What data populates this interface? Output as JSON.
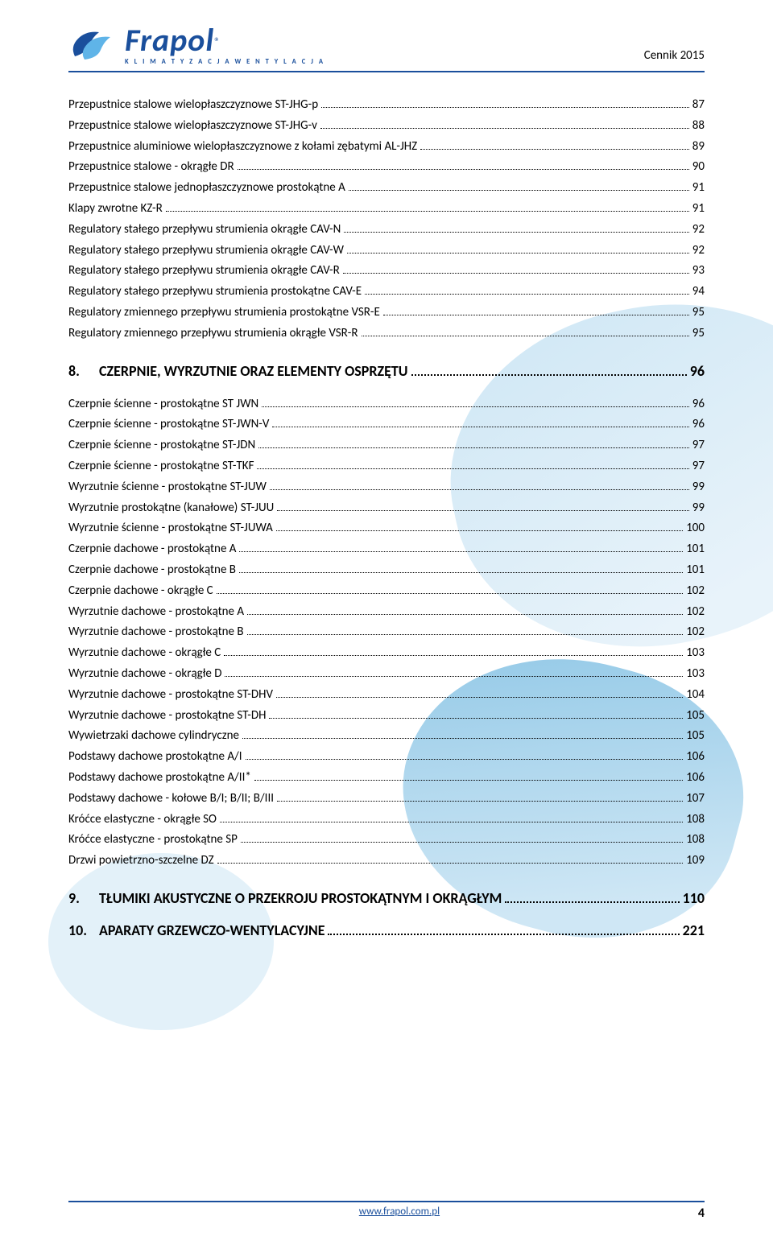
{
  "header": {
    "logo_text": "Frapol",
    "logo_reg": "®",
    "logo_sub": "K L I M A T Y Z A C J A   W E N T Y L A C J A",
    "right_text": "Cennik 2015"
  },
  "colors": {
    "brand_blue": "#1a4f9c",
    "bg_light": "#d9ecf7",
    "text": "#000000"
  },
  "toc_group_1": [
    {
      "label": "Przepustnice stalowe wielopłaszczyznowe ST-JHG-p",
      "page": "87"
    },
    {
      "label": "Przepustnice stalowe wielopłaszczyznowe ST-JHG-v",
      "page": "88"
    },
    {
      "label": "Przepustnice aluminiowe wielopłaszczyznowe z kołami zębatymi AL-JHZ",
      "page": "89"
    },
    {
      "label": "Przepustnice stalowe - okrągłe DR",
      "page": "90"
    },
    {
      "label": "Przepustnice stalowe jednopłaszczyznowe prostokątne A",
      "page": "91"
    },
    {
      "label": "Klapy zwrotne KZ-R",
      "page": "91"
    },
    {
      "label": "Regulatory stałego przepływu strumienia okrągłe CAV-N",
      "page": "92"
    },
    {
      "label": "Regulatory stałego przepływu strumienia okrągłe CAV-W",
      "page": "92"
    },
    {
      "label": "Regulatory stałego przepływu strumienia okrągłe CAV-R",
      "page": "93"
    },
    {
      "label": "Regulatory stałego przepływu strumienia prostokątne CAV-E",
      "page": "94"
    },
    {
      "label": "Regulatory zmiennego przepływu strumienia prostokątne VSR-E",
      "page": "95"
    },
    {
      "label": "Regulatory zmiennego przepływu strumienia okrągłe VSR-R",
      "page": "95"
    }
  ],
  "section_8": {
    "num": "8.",
    "title": "CZERPNIE, WYRZUTNIE ORAZ ELEMENTY   OSPRZĘTU",
    "page": "96"
  },
  "toc_group_2": [
    {
      "label": "Czerpnie ścienne - prostokątne ST JWN",
      "page": "96"
    },
    {
      "label": "Czerpnie ścienne - prostokątne ST-JWN-V",
      "page": "96"
    },
    {
      "label": "Czerpnie ścienne - prostokątne ST-JDN",
      "page": "97"
    },
    {
      "label": "Czerpnie ścienne - prostokątne ST-TKF",
      "page": "97"
    },
    {
      "label": "Wyrzutnie ścienne - prostokątne ST-JUW",
      "page": "99"
    },
    {
      "label": "Wyrzutnie prostokątne (kanałowe) ST-JUU",
      "page": "99"
    },
    {
      "label": "Wyrzutnie ścienne - prostokątne ST-JUWA",
      "page": "100"
    },
    {
      "label": "Czerpnie dachowe - prostokątne A",
      "page": "101"
    },
    {
      "label": "Czerpnie dachowe - prostokątne B",
      "page": "101"
    },
    {
      "label": "Czerpnie dachowe - okrągłe C",
      "page": "102"
    },
    {
      "label": "Wyrzutnie dachowe - prostokątne A",
      "page": "102"
    },
    {
      "label": "Wyrzutnie dachowe - prostokątne B",
      "page": "102"
    },
    {
      "label": "Wyrzutnie dachowe - okrągłe C",
      "page": "103"
    },
    {
      "label": "Wyrzutnie dachowe - okrągłe D",
      "page": "103"
    },
    {
      "label": "Wyrzutnie dachowe - prostokątne ST-DHV",
      "page": "104"
    },
    {
      "label": "Wyrzutnie dachowe - prostokątne ST-DH",
      "page": "105"
    },
    {
      "label": "Wywietrzaki dachowe cylindryczne",
      "page": "105"
    },
    {
      "label": "Podstawy dachowe prostokątne A/I",
      "page": "106"
    },
    {
      "label": "Podstawy dachowe prostokątne A/II*",
      "page": "106"
    },
    {
      "label": "Podstawy dachowe -  kołowe B/I; B/II; B/III",
      "page": "107"
    },
    {
      "label": "Króćce elastyczne - okrągłe SO",
      "page": "108"
    },
    {
      "label": "Króćce elastyczne - prostokątne SP",
      "page": "108"
    },
    {
      "label": "Drzwi powietrzno-szczelne DZ",
      "page": "109"
    }
  ],
  "section_9": {
    "num": "9.",
    "title": "TŁUMIKI AKUSTYCZNE O PRZEKROJU PROSTOKĄTNYM I OKRĄGŁYM",
    "page": "110"
  },
  "section_10": {
    "num": "10.",
    "title": "APARATY GRZEWCZO-WENTYLACYJNE",
    "page": "221"
  },
  "footer": {
    "url": "www.frapol.com.pl",
    "page_number": "4"
  }
}
